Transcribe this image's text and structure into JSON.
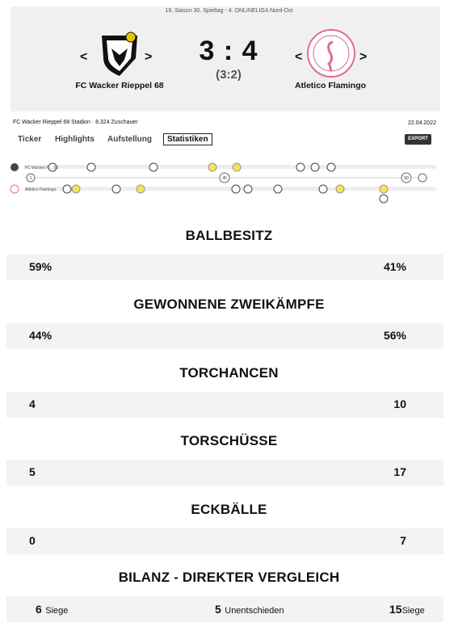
{
  "header": {
    "league": "19. Saison 30. Spieltag - 4. ONLINELIGA Nord-Ost",
    "home": "FC Wacker Rieppel 68",
    "away": "Atletico Flamingo",
    "score": "3 : 4",
    "halftime": "(3:2)"
  },
  "info": {
    "venue": "FC Wacker Rieppel 68 Stadion",
    "spectators": "· 8.324 Zuschauer",
    "date": "22.04.2022"
  },
  "tabs": [
    "Ticker",
    "Highlights",
    "Aufstellung",
    "Statistiken"
  ],
  "active_tab": 3,
  "export": "EXPORT",
  "timeline": {
    "home_label": "FC Wacker R... 68",
    "away_label": "Atletico Flamingo",
    "minutes": [
      "1",
      "45",
      "90"
    ]
  },
  "stats": [
    {
      "title": "BALLBESITZ",
      "home": "59%",
      "away": "41%"
    },
    {
      "title": "GEWONNENE ZWEIKÄMPFE",
      "home": "44%",
      "away": "56%"
    },
    {
      "title": "TORCHANCEN",
      "home": "4",
      "away": "10"
    },
    {
      "title": "TORSCHÜSSE",
      "home": "5",
      "away": "17"
    },
    {
      "title": "ECKBÄLLE",
      "home": "0",
      "away": "7"
    }
  ],
  "bilanz": {
    "title": "BILANZ - DIREKTER VERGLEICH",
    "home_wins": "6",
    "home_label": "Siege",
    "draws": "5",
    "draws_label": "Unentschieden",
    "away_wins": "15",
    "away_label": "Siege"
  }
}
